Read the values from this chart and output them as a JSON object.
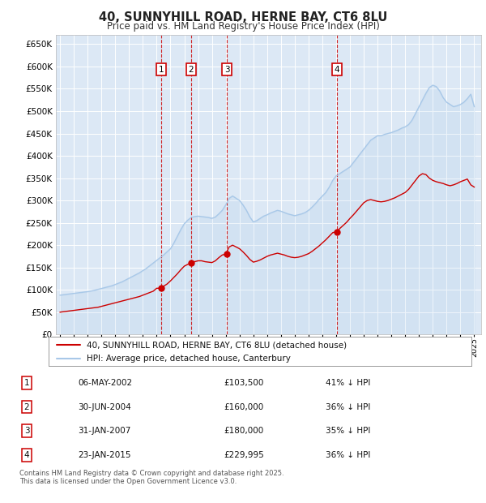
{
  "title": "40, SUNNYHILL ROAD, HERNE BAY, CT6 8LU",
  "subtitle": "Price paid vs. HM Land Registry's House Price Index (HPI)",
  "legend_line1": "40, SUNNYHILL ROAD, HERNE BAY, CT6 8LU (detached house)",
  "legend_line2": "HPI: Average price, detached house, Canterbury",
  "footer": "Contains HM Land Registry data © Crown copyright and database right 2025.\nThis data is licensed under the Open Government Licence v3.0.",
  "hpi_color": "#a8c8e8",
  "price_color": "#cc0000",
  "background_color": "#dce8f5",
  "ylim": [
    0,
    670000
  ],
  "ytick_vals": [
    0,
    50000,
    100000,
    150000,
    200000,
    250000,
    300000,
    350000,
    400000,
    450000,
    500000,
    550000,
    600000,
    650000
  ],
  "ytick_labels": [
    "£0",
    "£50K",
    "£100K",
    "£150K",
    "£200K",
    "£250K",
    "£300K",
    "£350K",
    "£400K",
    "£450K",
    "£500K",
    "£550K",
    "£600K",
    "£650K"
  ],
  "sale_markers": [
    {
      "label": "1",
      "date_idx": 2002.35
    },
    {
      "label": "2",
      "date_idx": 2004.5
    },
    {
      "label": "3",
      "date_idx": 2007.08
    },
    {
      "label": "4",
      "date_idx": 2015.06
    }
  ],
  "table_entries": [
    {
      "num": "1",
      "date": "06-MAY-2002",
      "price": "£103,500",
      "pct": "41% ↓ HPI"
    },
    {
      "num": "2",
      "date": "30-JUN-2004",
      "price": "£160,000",
      "pct": "36% ↓ HPI"
    },
    {
      "num": "3",
      "date": "31-JAN-2007",
      "price": "£180,000",
      "pct": "35% ↓ HPI"
    },
    {
      "num": "4",
      "date": "23-JAN-2015",
      "price": "£229,995",
      "pct": "36% ↓ HPI"
    }
  ],
  "hpi_years": [
    1995,
    1995.25,
    1995.5,
    1995.75,
    1996,
    1996.25,
    1996.5,
    1996.75,
    1997,
    1997.25,
    1997.5,
    1997.75,
    1998,
    1998.25,
    1998.5,
    1998.75,
    1999,
    1999.25,
    1999.5,
    1999.75,
    2000,
    2000.25,
    2000.5,
    2000.75,
    2001,
    2001.25,
    2001.5,
    2001.75,
    2002,
    2002.25,
    2002.5,
    2002.75,
    2003,
    2003.25,
    2003.5,
    2003.75,
    2004,
    2004.25,
    2004.5,
    2004.75,
    2005,
    2005.25,
    2005.5,
    2005.75,
    2006,
    2006.25,
    2006.5,
    2006.75,
    2007,
    2007.25,
    2007.5,
    2007.75,
    2008,
    2008.25,
    2008.5,
    2008.75,
    2009,
    2009.25,
    2009.5,
    2009.75,
    2010,
    2010.25,
    2010.5,
    2010.75,
    2011,
    2011.25,
    2011.5,
    2011.75,
    2012,
    2012.25,
    2012.5,
    2012.75,
    2013,
    2013.25,
    2013.5,
    2013.75,
    2014,
    2014.25,
    2014.5,
    2014.75,
    2015,
    2015.25,
    2015.5,
    2015.75,
    2016,
    2016.25,
    2016.5,
    2016.75,
    2017,
    2017.25,
    2017.5,
    2017.75,
    2018,
    2018.25,
    2018.5,
    2018.75,
    2019,
    2019.25,
    2019.5,
    2019.75,
    2020,
    2020.25,
    2020.5,
    2020.75,
    2021,
    2021.25,
    2021.5,
    2021.75,
    2022,
    2022.25,
    2022.5,
    2022.75,
    2023,
    2023.25,
    2023.5,
    2023.75,
    2024,
    2024.25,
    2024.5,
    2024.75,
    2025
  ],
  "hpi_values": [
    88000,
    89000,
    90000,
    91000,
    92000,
    93000,
    94000,
    95000,
    96000,
    97500,
    99000,
    101000,
    103000,
    105000,
    107000,
    109000,
    112000,
    115000,
    118000,
    122000,
    126000,
    130000,
    134000,
    138000,
    143000,
    148000,
    154000,
    160000,
    166000,
    172000,
    178000,
    185000,
    192000,
    205000,
    220000,
    235000,
    248000,
    256000,
    262000,
    264000,
    265000,
    264000,
    263000,
    262000,
    260000,
    263000,
    270000,
    278000,
    290000,
    305000,
    310000,
    305000,
    300000,
    290000,
    278000,
    263000,
    252000,
    255000,
    260000,
    265000,
    268000,
    272000,
    275000,
    278000,
    276000,
    273000,
    270000,
    268000,
    266000,
    268000,
    270000,
    273000,
    278000,
    285000,
    293000,
    302000,
    310000,
    318000,
    330000,
    345000,
    355000,
    360000,
    365000,
    370000,
    375000,
    385000,
    395000,
    405000,
    415000,
    425000,
    435000,
    440000,
    445000,
    445000,
    448000,
    450000,
    452000,
    455000,
    458000,
    462000,
    465000,
    470000,
    480000,
    495000,
    510000,
    525000,
    540000,
    553000,
    558000,
    555000,
    545000,
    530000,
    520000,
    515000,
    510000,
    512000,
    515000,
    520000,
    528000,
    538000,
    510000
  ],
  "price_years": [
    1995,
    1995.25,
    1995.5,
    1995.75,
    1996,
    1996.25,
    1996.5,
    1996.75,
    1997,
    1997.25,
    1997.5,
    1997.75,
    1998,
    1998.25,
    1998.5,
    1998.75,
    1999,
    1999.25,
    1999.5,
    1999.75,
    2000,
    2000.25,
    2000.5,
    2000.75,
    2001,
    2001.25,
    2001.5,
    2001.75,
    2002,
    2002.35,
    2002.5,
    2002.75,
    2003,
    2003.25,
    2003.5,
    2003.75,
    2004,
    2004.25,
    2004.5,
    2004.75,
    2005,
    2005.25,
    2005.5,
    2005.75,
    2006,
    2006.25,
    2006.5,
    2006.75,
    2007,
    2007.25,
    2007.5,
    2007.75,
    2008,
    2008.25,
    2008.5,
    2008.75,
    2009,
    2009.25,
    2009.5,
    2009.75,
    2010,
    2010.25,
    2010.5,
    2010.75,
    2011,
    2011.25,
    2011.5,
    2011.75,
    2012,
    2012.25,
    2012.5,
    2012.75,
    2013,
    2013.25,
    2013.5,
    2013.75,
    2014,
    2014.25,
    2014.5,
    2014.75,
    2015,
    2015.06,
    2015.25,
    2015.5,
    2015.75,
    2016,
    2016.25,
    2016.5,
    2016.75,
    2017,
    2017.25,
    2017.5,
    2017.75,
    2018,
    2018.25,
    2018.5,
    2018.75,
    2019,
    2019.25,
    2019.5,
    2019.75,
    2020,
    2020.25,
    2020.5,
    2020.75,
    2021,
    2021.25,
    2021.5,
    2021.75,
    2022,
    2022.25,
    2022.5,
    2022.75,
    2023,
    2023.25,
    2023.5,
    2023.75,
    2024,
    2024.25,
    2024.5,
    2024.75,
    2025
  ],
  "price_values": [
    50000,
    51000,
    52000,
    53000,
    54000,
    55000,
    56000,
    57000,
    58000,
    59000,
    60000,
    61000,
    63000,
    65000,
    67000,
    69000,
    71000,
    73000,
    75000,
    77000,
    79000,
    81000,
    83000,
    85000,
    88000,
    91000,
    94000,
    97000,
    103500,
    103500,
    108000,
    113000,
    120000,
    128000,
    136000,
    145000,
    153000,
    157000,
    160000,
    163000,
    165000,
    165000,
    163000,
    162000,
    161000,
    165000,
    172000,
    178000,
    180000,
    196000,
    200000,
    196000,
    192000,
    185000,
    177000,
    168000,
    162000,
    164000,
    167000,
    171000,
    175000,
    178000,
    180000,
    182000,
    180000,
    178000,
    175000,
    173000,
    172000,
    173000,
    175000,
    178000,
    181000,
    186000,
    192000,
    198000,
    205000,
    212000,
    220000,
    228000,
    229995,
    229995,
    237000,
    244000,
    251000,
    260000,
    268000,
    277000,
    286000,
    295000,
    300000,
    302000,
    300000,
    298000,
    297000,
    298000,
    300000,
    303000,
    306000,
    310000,
    314000,
    318000,
    325000,
    335000,
    345000,
    355000,
    360000,
    358000,
    350000,
    345000,
    342000,
    340000,
    338000,
    335000,
    333000,
    335000,
    338000,
    342000,
    345000,
    348000,
    335000,
    330000
  ]
}
